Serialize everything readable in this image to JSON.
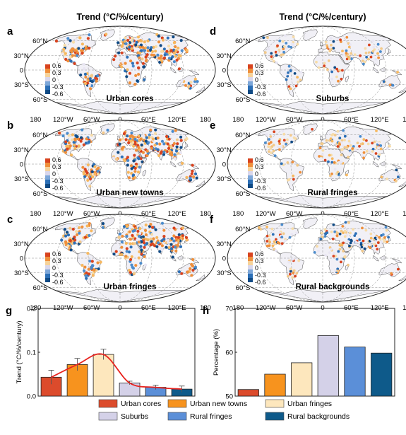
{
  "header": {
    "left_title": "Trend (°C/%/century)",
    "right_title": "Trend (°C/%/century)"
  },
  "maps": [
    {
      "letter": "a",
      "label": "Urban cores",
      "density": 1.0,
      "warm_share": 0.55
    },
    {
      "letter": "b",
      "label": "Urban new towns",
      "density": 1.0,
      "warm_share": 0.55
    },
    {
      "letter": "c",
      "label": "Urban fringes",
      "density": 1.0,
      "warm_share": 0.55
    },
    {
      "letter": "d",
      "label": "Suburbs",
      "density": 0.45,
      "warm_share": 0.6
    },
    {
      "letter": "e",
      "label": "Rural fringes",
      "density": 0.55,
      "warm_share": 0.6
    },
    {
      "letter": "f",
      "label": "Rural backgrounds",
      "density": 0.6,
      "warm_share": 0.55
    }
  ],
  "map_axes": {
    "lat_labels": [
      "60°N",
      "30°N",
      "0",
      "30°S",
      "60°S"
    ],
    "lon_labels": [
      "180",
      "120°W",
      "60°W",
      "0",
      "60°E",
      "120°E",
      "180"
    ]
  },
  "colorbar": {
    "ticks": [
      "0.6",
      "0.3",
      "0",
      "-0.3",
      "-0.6"
    ],
    "colors": [
      "#d8431f",
      "#ef8f3b",
      "#f6d29a",
      "#d9d7ec",
      "#7da7d9",
      "#2c6fb6",
      "#104a84"
    ]
  },
  "colors": {
    "urban_cores": "#dc4b2c",
    "urban_new_towns": "#f7931e",
    "urban_fringes": "#fde7bd",
    "suburbs": "#d4d1e8",
    "rural_fringes": "#5b8fd8",
    "rural_backgrounds": "#0e5a8a",
    "fit_line": "#e8231e"
  },
  "chart_data": [
    {
      "panel": "g",
      "type": "bar",
      "categories": [
        "Urban cores",
        "Urban new towns",
        "Urban fringes",
        "Suburbs",
        "Rural fringes",
        "Rural backgrounds"
      ],
      "values": [
        0.043,
        0.072,
        0.095,
        0.03,
        0.02,
        0.016
      ],
      "errors": [
        0.016,
        0.014,
        0.012,
        0.004,
        0.005,
        0.007
      ],
      "fit_line": true,
      "ylabel": "Trend (°C/%/century)",
      "ylim": [
        0,
        0.2
      ],
      "yticks": [
        "0.0",
        "0.1",
        "0.2"
      ]
    },
    {
      "panel": "h",
      "type": "bar",
      "categories": [
        "Urban cores",
        "Urban new towns",
        "Urban fringes",
        "Suburbs",
        "Rural fringes",
        "Rural backgrounds"
      ],
      "values": [
        51.5,
        55.0,
        57.6,
        63.8,
        61.2,
        59.8
      ],
      "ylabel": "Percentage (%)",
      "ylim": [
        50,
        70
      ],
      "yticks": [
        "50",
        "60",
        "70"
      ]
    }
  ],
  "legend": {
    "items": [
      {
        "label": "Urban cores",
        "color": "#dc4b2c"
      },
      {
        "label": "Urban new towns",
        "color": "#f7931e"
      },
      {
        "label": "Urban  fringes",
        "color": "#fde7bd"
      },
      {
        "label": "Suburbs",
        "color": "#d4d1e8"
      },
      {
        "label": "Rural fringes",
        "color": "#5b8fd8"
      },
      {
        "label": "Rural backgrounds",
        "color": "#0e5a8a"
      }
    ]
  }
}
